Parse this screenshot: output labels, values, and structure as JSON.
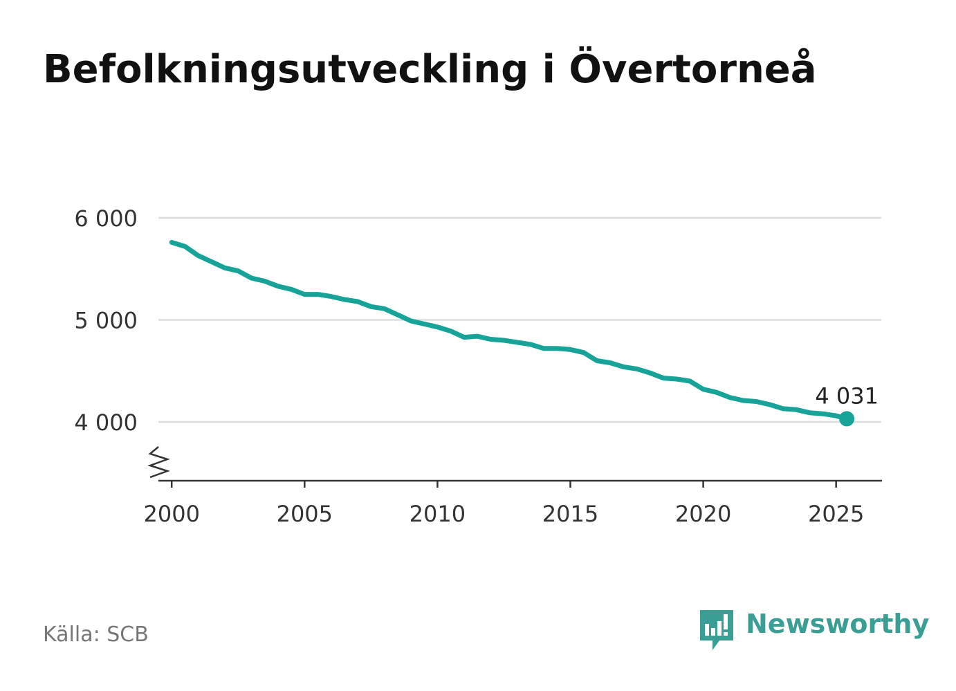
{
  "title": "Befolkningsutveckling i Övertorneå",
  "source": "Källa: SCB",
  "brand": {
    "name": "Newsworthy",
    "logo_icon": "newsworthy-bar-chart-speech-bubble-icon"
  },
  "colors": {
    "line": "#17a398",
    "grid": "#dddddd",
    "axis": "#333333",
    "brand": "#3a9e94"
  },
  "chart_data": {
    "type": "line",
    "title": "Befolkningsutveckling i Övertorneå",
    "xlabel": "",
    "ylabel": "",
    "xlim": [
      1999.5,
      2026.7
    ],
    "ylim": [
      3430,
      6000
    ],
    "y_axis_break": true,
    "grid": "horizontal",
    "x_ticks": [
      2000,
      2005,
      2010,
      2015,
      2020,
      2025
    ],
    "x_tick_labels": [
      "2000",
      "2005",
      "2010",
      "2015",
      "2020",
      "2025"
    ],
    "y_ticks": [
      4000,
      5000,
      6000
    ],
    "y_tick_labels": [
      "4 000",
      "5 000",
      "6 000"
    ],
    "end_label": "4 031",
    "series": [
      {
        "x": [
          2000.0,
          2000.5,
          2001.0,
          2001.5,
          2002.0,
          2002.5,
          2003.0,
          2003.5,
          2004.0,
          2004.5,
          2005.0,
          2005.5,
          2006.0,
          2006.5,
          2007.0,
          2007.5,
          2008.0,
          2008.5,
          2009.0,
          2009.5,
          2010.0,
          2010.5,
          2011.0,
          2011.5,
          2012.0,
          2012.5,
          2013.0,
          2013.5,
          2014.0,
          2014.5,
          2015.0,
          2015.5,
          2016.0,
          2016.5,
          2017.0,
          2017.5,
          2018.0,
          2018.5,
          2019.0,
          2019.5,
          2020.0,
          2020.5,
          2021.0,
          2021.5,
          2022.0,
          2022.5,
          2023.0,
          2023.5,
          2024.0,
          2024.5,
          2025.0,
          2025.4
        ],
        "y": [
          5760,
          5720,
          5630,
          5570,
          5510,
          5480,
          5410,
          5380,
          5330,
          5300,
          5250,
          5250,
          5230,
          5200,
          5180,
          5130,
          5110,
          5050,
          4990,
          4960,
          4930,
          4890,
          4830,
          4840,
          4810,
          4800,
          4780,
          4760,
          4720,
          4720,
          4710,
          4680,
          4600,
          4580,
          4540,
          4520,
          4480,
          4430,
          4420,
          4400,
          4320,
          4290,
          4240,
          4210,
          4200,
          4170,
          4130,
          4120,
          4090,
          4080,
          4060,
          4031
        ]
      }
    ]
  }
}
